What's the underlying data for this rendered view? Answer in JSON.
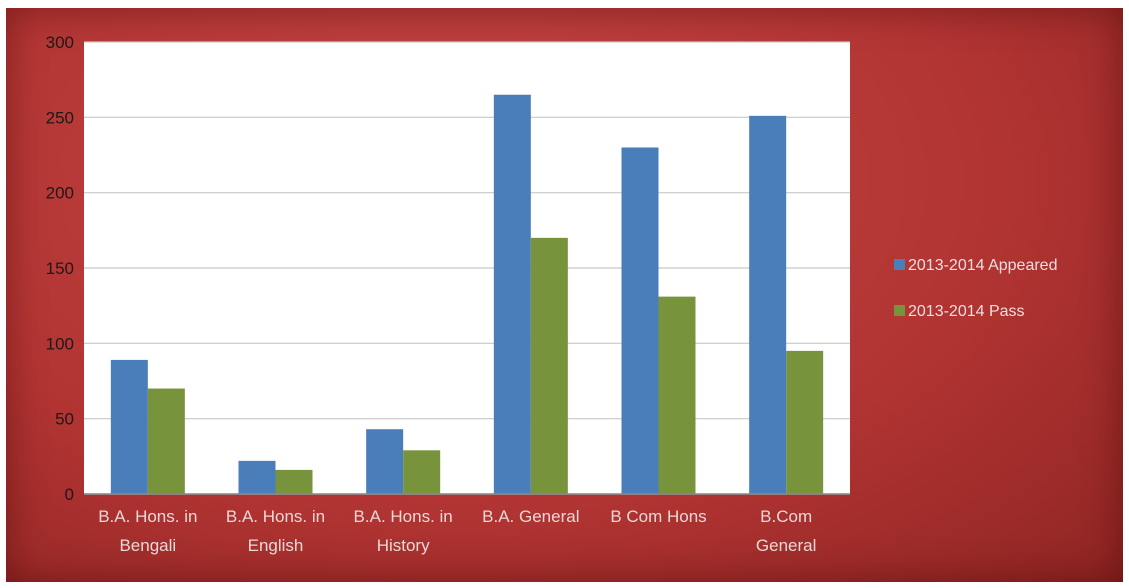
{
  "chart_data": {
    "type": "bar",
    "title": "",
    "xlabel": "",
    "ylabel": "",
    "ylim": [
      0,
      300
    ],
    "yticks": [
      0,
      50,
      100,
      150,
      200,
      250,
      300
    ],
    "grid": true,
    "legend_position": "right",
    "categories": [
      [
        "B.A. Hons. in",
        "Bengali"
      ],
      [
        "B.A. Hons. in",
        "English"
      ],
      [
        "B.A. Hons. in",
        "History"
      ],
      [
        "B.A. General",
        ""
      ],
      [
        "B Com Hons",
        ""
      ],
      [
        "B.Com",
        "General"
      ]
    ],
    "series": [
      {
        "name": "2013-2014 Appeared",
        "color": "#4a7ebb",
        "values": [
          89,
          22,
          43,
          265,
          230,
          251
        ]
      },
      {
        "name": "2013-2014 Pass",
        "color": "#77933c",
        "values": [
          70,
          16,
          29,
          170,
          131,
          95
        ]
      }
    ],
    "colors": {
      "frame": "#b33533",
      "plot_bg": "#ffffff",
      "grid": "#c8c8c8"
    }
  }
}
